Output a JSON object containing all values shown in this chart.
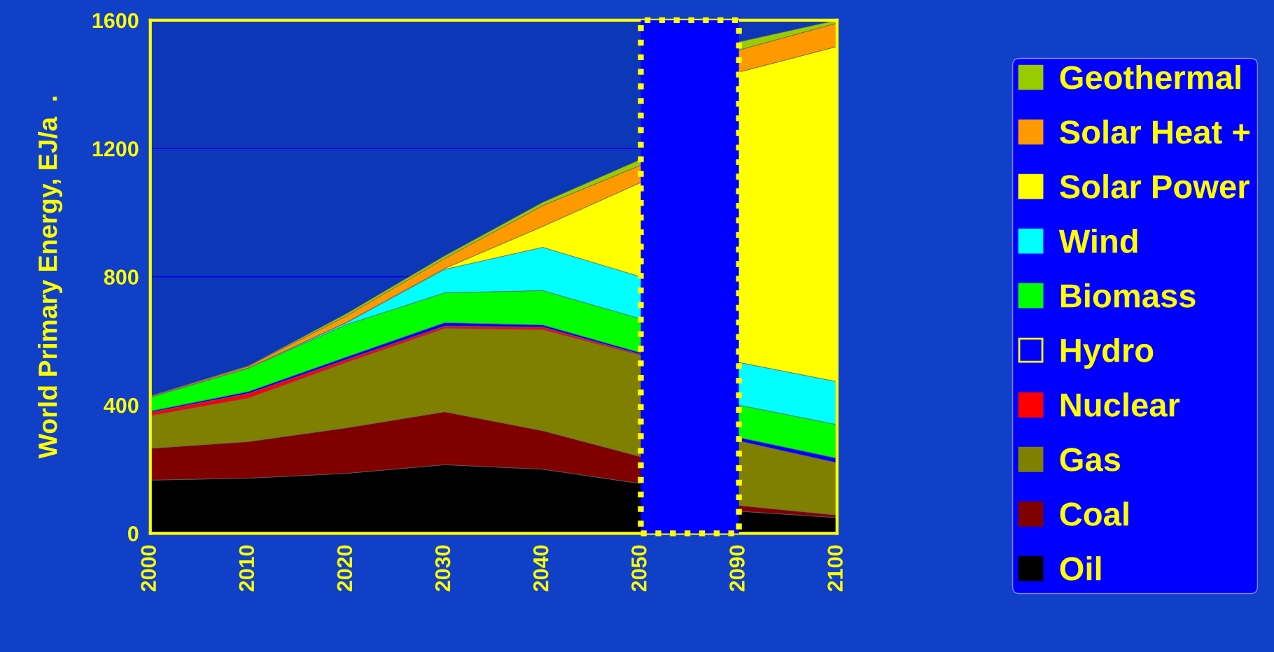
{
  "chart_data": {
    "type": "area",
    "stacked": true,
    "ylabel": "World Primary Energy, EJ/a  .",
    "categories": [
      "2000",
      "2010",
      "2020",
      "2030",
      "2040",
      "2050",
      "2090",
      "2100"
    ],
    "ylim": [
      0,
      1600
    ],
    "yticks": [
      0,
      400,
      800,
      1200,
      1600
    ],
    "grid": "y",
    "legend": "right",
    "bands": [
      {
        "axis": "x",
        "from": "2050",
        "to": "2090",
        "color": "#0000ff"
      }
    ],
    "series": [
      {
        "name": "Oil",
        "color": "#000000",
        "values": [
          166,
          172,
          187,
          214,
          200,
          155,
          69,
          49
        ]
      },
      {
        "name": "Coal",
        "color": "#800000",
        "values": [
          99,
          114,
          142,
          165,
          120,
          84,
          18,
          8
        ]
      },
      {
        "name": "Gas",
        "color": "#808000",
        "values": [
          102,
          136,
          204,
          260,
          315,
          316,
          201,
          163
        ]
      },
      {
        "name": "Nuclear",
        "color": "#ff0000",
        "values": [
          10,
          14,
          9,
          7,
          8,
          3,
          0,
          0
        ]
      },
      {
        "name": "Hydro",
        "color": "#0000ff",
        "values": [
          4,
          6,
          8,
          11,
          7,
          5,
          11,
          14
        ]
      },
      {
        "name": "Biomass",
        "color": "#00ff00",
        "values": [
          44,
          73,
          101,
          93,
          107,
          106,
          101,
          105
        ]
      },
      {
        "name": "Wind",
        "color": "#00ffff",
        "values": [
          0,
          1,
          6,
          73,
          135,
          131,
          133,
          134
        ]
      },
      {
        "name": "Solar Power",
        "color": "#ffff00",
        "values": [
          0,
          0,
          1,
          3,
          65,
          294,
          905,
          1045
        ]
      },
      {
        "name": "Solar Heat +",
        "color": "#ff9900",
        "values": [
          2,
          5,
          20,
          31,
          65,
          54,
          69,
          73
        ]
      },
      {
        "name": "Geothermal",
        "color": "#99cc00",
        "values": [
          1,
          1,
          7,
          8,
          10,
          18,
          25,
          9
        ]
      }
    ]
  }
}
